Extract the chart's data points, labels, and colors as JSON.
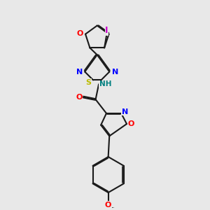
{
  "bg_color": "#e8e8e8",
  "bond_color": "#1a1a1a",
  "bond_width": 1.5,
  "dbo": 0.035,
  "atom_colors": {
    "I": "#cc00cc",
    "O": "#ff0000",
    "N": "#0000ff",
    "S": "#bbbb00",
    "H": "#008080"
  },
  "figsize": [
    3.0,
    3.0
  ],
  "dpi": 100
}
